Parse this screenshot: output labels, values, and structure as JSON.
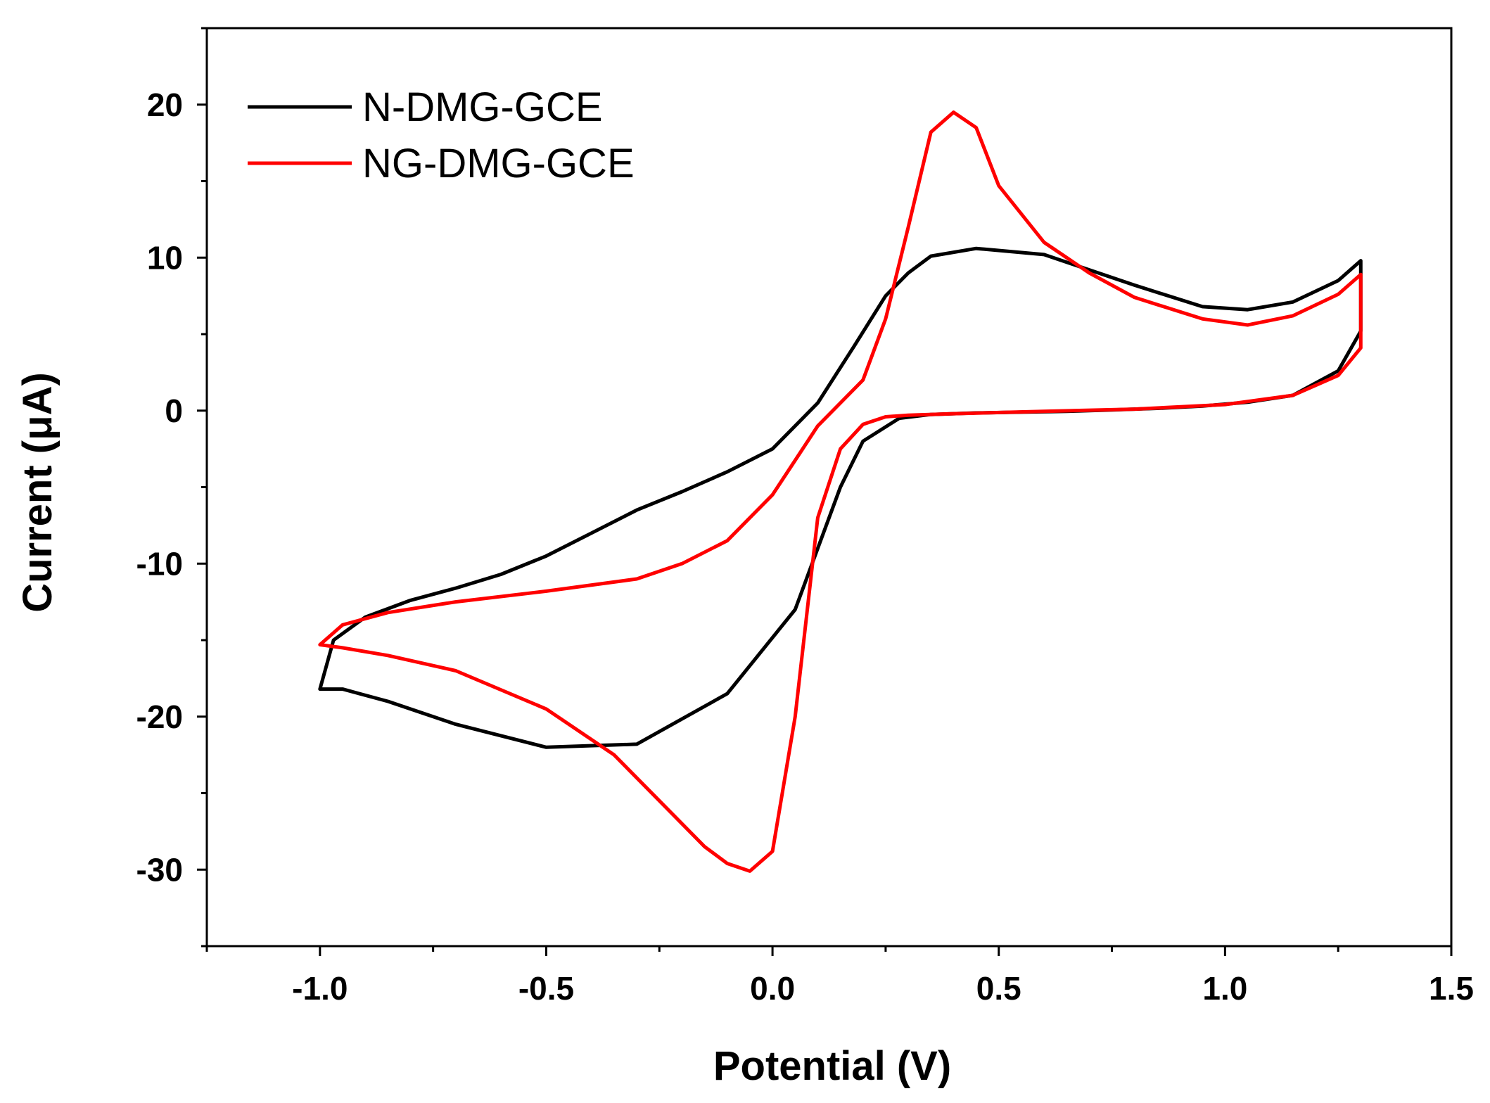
{
  "chart_data": {
    "type": "line",
    "title": "",
    "xlabel": "Potential (V)",
    "ylabel": "Current (μA)",
    "xlim": [
      -1.25,
      1.5
    ],
    "ylim": [
      -35,
      25
    ],
    "x_ticks": [
      -1.0,
      -0.5,
      0.0,
      0.5,
      1.0,
      1.5
    ],
    "x_tick_labels": [
      "-1.0",
      "-0.5",
      "0.0",
      "0.5",
      "1.0",
      "1.5"
    ],
    "y_ticks": [
      -30,
      -20,
      -10,
      0,
      10,
      20
    ],
    "y_tick_labels": [
      "-30",
      "-20",
      "-10",
      "0",
      "10",
      "20"
    ],
    "grid": false,
    "legend_position": "top-left",
    "series": [
      {
        "name": "N-DMG-GCE",
        "color": "#000000",
        "x": [
          -1.0,
          -0.95,
          -0.85,
          -0.7,
          -0.5,
          -0.3,
          -0.1,
          0.05,
          0.15,
          0.2,
          0.28,
          0.35,
          0.45,
          0.55,
          0.65,
          0.75,
          0.85,
          0.95,
          1.05,
          1.15,
          1.25,
          1.3,
          1.3,
          1.25,
          1.15,
          1.05,
          0.95,
          0.8,
          0.6,
          0.45,
          0.35,
          0.3,
          0.25,
          0.18,
          0.1,
          0.0,
          -0.1,
          -0.2,
          -0.3,
          -0.4,
          -0.5,
          -0.6,
          -0.7,
          -0.8,
          -0.9,
          -0.97,
          -1.0
        ],
        "y": [
          -18.2,
          -18.2,
          -19.0,
          -20.5,
          -22.0,
          -21.8,
          -18.5,
          -13.0,
          -5.0,
          -2.0,
          -0.5,
          -0.25,
          -0.15,
          -0.1,
          -0.05,
          0.05,
          0.15,
          0.3,
          0.55,
          1.0,
          2.6,
          5.2,
          9.8,
          8.5,
          7.1,
          6.6,
          6.8,
          8.2,
          10.2,
          10.6,
          10.1,
          9.0,
          7.5,
          4.2,
          0.5,
          -2.5,
          -4.0,
          -5.3,
          -6.5,
          -8.0,
          -9.5,
          -10.7,
          -11.6,
          -12.4,
          -13.5,
          -15.0,
          -18.2
        ]
      },
      {
        "name": "NG-DMG-GCE",
        "color": "#ff0000",
        "x": [
          -1.0,
          -0.95,
          -0.85,
          -0.7,
          -0.5,
          -0.35,
          -0.25,
          -0.15,
          -0.1,
          -0.05,
          0.0,
          0.05,
          0.1,
          0.15,
          0.2,
          0.25,
          0.3,
          0.4,
          0.6,
          0.8,
          1.0,
          1.15,
          1.25,
          1.3,
          1.3,
          1.25,
          1.15,
          1.05,
          0.95,
          0.8,
          0.7,
          0.6,
          0.5,
          0.45,
          0.4,
          0.35,
          0.3,
          0.25,
          0.2,
          0.1,
          0.0,
          -0.1,
          -0.2,
          -0.3,
          -0.5,
          -0.7,
          -0.85,
          -0.95,
          -1.0
        ],
        "y": [
          -15.3,
          -15.5,
          -16.0,
          -17.0,
          -19.5,
          -22.5,
          -25.5,
          -28.5,
          -29.6,
          -30.1,
          -28.8,
          -20.0,
          -7.0,
          -2.5,
          -0.9,
          -0.4,
          -0.3,
          -0.2,
          -0.05,
          0.1,
          0.4,
          1.0,
          2.3,
          4.1,
          8.9,
          7.6,
          6.2,
          5.6,
          6.0,
          7.4,
          9.0,
          11.0,
          14.7,
          18.5,
          19.5,
          18.2,
          12.0,
          6.0,
          2.0,
          -1.0,
          -5.5,
          -8.5,
          -10.0,
          -11.0,
          -11.8,
          -12.5,
          -13.2,
          -14.0,
          -15.3
        ]
      }
    ]
  }
}
